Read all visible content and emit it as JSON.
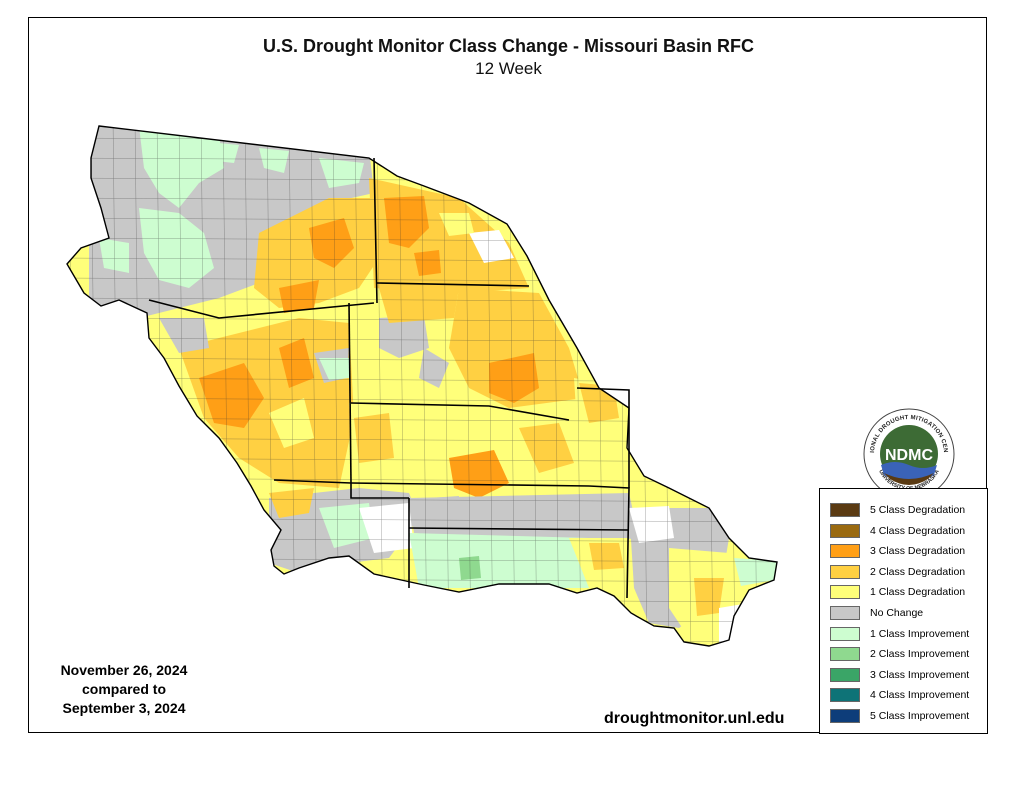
{
  "title": "U.S. Drought Monitor Class Change - Missouri Basin RFC",
  "subtitle": "12 Week",
  "dates": {
    "line1": "November 26, 2024",
    "line2": "compared to",
    "line3": "September 3, 2024"
  },
  "url": "droughtmonitor.unl.edu",
  "logo": {
    "text": "NDMC",
    "ring_text": "NATIONAL DROUGHT MITIGATION CENTER",
    "ring_text_bottom": "UNIVERSITY OF NEBRASKA"
  },
  "legend": [
    {
      "label": "5 Class Degradation",
      "color": "#5a3a12"
    },
    {
      "label": "4 Class Degradation",
      "color": "#9a6a10"
    },
    {
      "label": "3 Class Degradation",
      "color": "#ff9f16"
    },
    {
      "label": "2 Class Degradation",
      "color": "#ffd042"
    },
    {
      "label": "1 Class Degradation",
      "color": "#ffff7a"
    },
    {
      "label": "No Change",
      "color": "#c8c8c8"
    },
    {
      "label": "1 Class Improvement",
      "color": "#cdfdd0"
    },
    {
      "label": "2 Class Improvement",
      "color": "#8fd98f"
    },
    {
      "label": "3 Class Improvement",
      "color": "#3aa567"
    },
    {
      "label": "4 Class Improvement",
      "color": "#0e7377"
    },
    {
      "label": "5 Class Improvement",
      "color": "#0d3d7a"
    }
  ],
  "colors": {
    "deg3": "#ff9f16",
    "deg2": "#ffd042",
    "deg1": "#ffff7a",
    "nochange": "#c8c8c8",
    "imp1": "#cdfdd0",
    "imp2": "#8fd98f",
    "imp3": "#3aa567",
    "logo_green": "#3d6b35",
    "logo_blue": "#3a63b8"
  }
}
